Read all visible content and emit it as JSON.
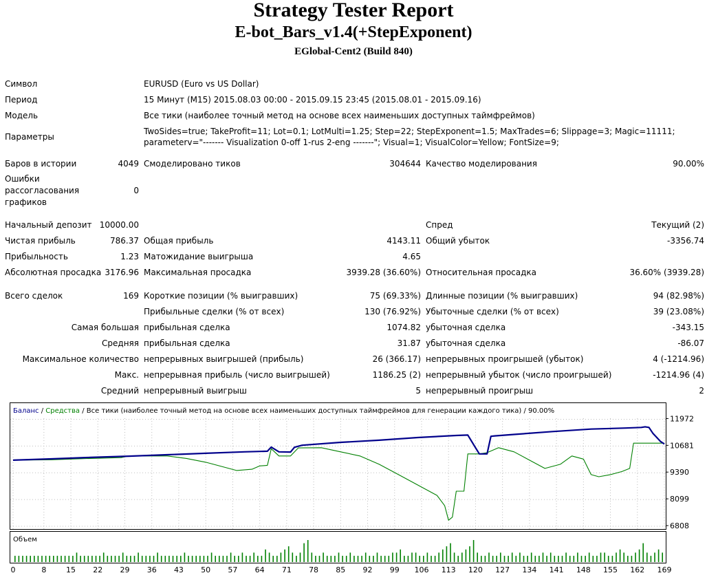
{
  "report": {
    "title": "Strategy Tester Report",
    "expert": "E-bot_Bars_v1.4(+StepExponent)",
    "server": "EGlobal-Cent2 (Build 840)"
  },
  "info": {
    "symbol_label": "Символ",
    "symbol_value": "EURUSD (Euro vs US Dollar)",
    "period_label": "Период",
    "period_value": "15 Минут (M15) 2015.08.03 00:00 - 2015.09.15 23:45 (2015.08.01 - 2015.09.16)",
    "model_label": "Модель",
    "model_value": "Все тики (наиболее точный метод на основе всех наименьших доступных таймфреймов)",
    "params_label": "Параметры",
    "params_line1": "TwoSides=true; TakeProfit=11; Lot=0.1; LotMulti=1.25; Step=22; StepExponent=1.5; MaxTrades=6; Slippage=3; Magic=11111;",
    "params_line2": "parameterv=\"------- Visualization 0-off 1-rus 2-eng -------\"; Visual=1; VisualColor=Yellow; FontSize=9;"
  },
  "stats": {
    "bars_label": "Баров в истории",
    "bars_value": "4049",
    "ticks_label": "Смоделировано тиков",
    "ticks_value": "304644",
    "quality_label": "Качество моделирования",
    "quality_value": "90.00%",
    "errors_label_1": "Ошибки",
    "errors_label_2": "рассогласования",
    "errors_label_3": "графиков",
    "errors_value": "0",
    "deposit_label": "Начальный депозит",
    "deposit_value": "10000.00",
    "spread_label": "Спред",
    "spread_value": "Текущий (2)",
    "net_label": "Чистая прибыль",
    "net_value": "786.37",
    "gross_profit_label": "Общая прибыль",
    "gross_profit_value": "4143.11",
    "gross_loss_label": "Общий убыток",
    "gross_loss_value": "-3356.74",
    "pf_label": "Прибыльность",
    "pf_value": "1.23",
    "payoff_label": "Матожидание выигрыша",
    "payoff_value": "4.65",
    "abs_dd_label": "Абсолютная просадка",
    "abs_dd_value": "3176.96",
    "max_dd_label": "Максимальная просадка",
    "max_dd_value": "3939.28 (36.60%)",
    "rel_dd_label": "Относительная просадка",
    "rel_dd_value": "36.60% (3939.28)",
    "total_label": "Всего сделок",
    "total_value": "169",
    "short_label": "Короткие позиции (% выигравших)",
    "short_value": "75 (69.33%)",
    "long_label": "Длинные позиции (% выигравших)",
    "long_value": "94 (82.98%)",
    "win_trades_label": "Прибыльные сделки (% от всех)",
    "win_trades_value": "130 (76.92%)",
    "loss_trades_label": "Убыточные сделки (% от всех)",
    "loss_trades_value": "39 (23.08%)",
    "largest_label": "Самая большая",
    "largest_win_label": "прибыльная сделка",
    "largest_win_value": "1074.82",
    "largest_loss_label": "убыточная сделка",
    "largest_loss_value": "-343.15",
    "average_label": "Средняя",
    "avg_win_label": "прибыльная сделка",
    "avg_win_value": "31.87",
    "avg_loss_label": "убыточная сделка",
    "avg_loss_value": "-86.07",
    "maxcount_label": "Максимальное количество",
    "max_cons_wins_label": "непрерывных выигрышей (прибыль)",
    "max_cons_wins_value": "26 (366.17)",
    "max_cons_losses_label": "непрерывных проигрышей (убыток)",
    "max_cons_losses_value": "4 (-1214.96)",
    "maxval_label": "Макс.",
    "max_cons_profit_label": "непрерывная прибыль (число выигрышей)",
    "max_cons_profit_value": "1186.25 (2)",
    "max_cons_loss_label": "непрерывный убыток (число проигрышей)",
    "max_cons_loss_value": "-1214.96 (4)",
    "avg_label2": "Средний",
    "avg_cons_wins_label": "непрерывный выигрыш",
    "avg_cons_wins_value": "5",
    "avg_cons_losses_label": "непрерывный проигрыш",
    "avg_cons_losses_value": "2"
  },
  "chart_data": {
    "type": "line",
    "legend_balance": "Баланс",
    "legend_sep": " / ",
    "legend_equity": "Средства",
    "legend_rest": " / Все тики (наиболее точный метод на основе всех наименьших доступных таймфреймов для генерации каждого тика) / 90.00%",
    "volume_label": "Объем",
    "y_ticks": [
      "11972",
      "10681",
      "9390",
      "8099",
      "6808"
    ],
    "x_ticks": [
      "0",
      "8",
      "15",
      "22",
      "29",
      "36",
      "43",
      "50",
      "57",
      "64",
      "71",
      "78",
      "85",
      "92",
      "99",
      "106",
      "113",
      "120",
      "127",
      "134",
      "141",
      "148",
      "155",
      "162",
      "169"
    ],
    "xlim": [
      0,
      169
    ],
    "ylim": [
      6808,
      12618
    ],
    "colors": {
      "balance": "#00008b",
      "equity": "#008000",
      "volume": "#008000"
    },
    "series": [
      {
        "name": "Баланс",
        "color": "#00008b",
        "points": [
          [
            0,
            10000
          ],
          [
            10,
            10060
          ],
          [
            20,
            10130
          ],
          [
            30,
            10190
          ],
          [
            40,
            10260
          ],
          [
            50,
            10330
          ],
          [
            60,
            10400
          ],
          [
            66,
            10430
          ],
          [
            67,
            10630
          ],
          [
            69,
            10400
          ],
          [
            72,
            10390
          ],
          [
            73,
            10620
          ],
          [
            75,
            10720
          ],
          [
            85,
            10860
          ],
          [
            95,
            10960
          ],
          [
            105,
            11090
          ],
          [
            115,
            11190
          ],
          [
            118,
            11210
          ],
          [
            120,
            10600
          ],
          [
            121,
            10300
          ],
          [
            123,
            10300
          ],
          [
            124,
            11150
          ],
          [
            125,
            11170
          ],
          [
            130,
            11240
          ],
          [
            140,
            11380
          ],
          [
            150,
            11500
          ],
          [
            159,
            11550
          ],
          [
            163,
            11580
          ],
          [
            164,
            11610
          ],
          [
            165,
            11580
          ],
          [
            166,
            11300
          ],
          [
            168,
            10900
          ],
          [
            169,
            10780
          ]
        ]
      },
      {
        "name": "Средства",
        "color": "#008000",
        "points": [
          [
            0,
            10000
          ],
          [
            10,
            10020
          ],
          [
            20,
            10080
          ],
          [
            28,
            10120
          ],
          [
            30,
            10200
          ],
          [
            40,
            10200
          ],
          [
            45,
            10080
          ],
          [
            50,
            9900
          ],
          [
            55,
            9650
          ],
          [
            58,
            9500
          ],
          [
            62,
            9560
          ],
          [
            64,
            9720
          ],
          [
            66,
            9750
          ],
          [
            67,
            10550
          ],
          [
            69,
            10200
          ],
          [
            72,
            10200
          ],
          [
            74,
            10590
          ],
          [
            80,
            10600
          ],
          [
            85,
            10400
          ],
          [
            90,
            10200
          ],
          [
            95,
            9800
          ],
          [
            100,
            9300
          ],
          [
            105,
            8800
          ],
          [
            110,
            8300
          ],
          [
            112,
            7800
          ],
          [
            113,
            7100
          ],
          [
            114,
            7250
          ],
          [
            115,
            8500
          ],
          [
            117,
            8500
          ],
          [
            118,
            10300
          ],
          [
            121,
            10300
          ],
          [
            123,
            10360
          ],
          [
            126,
            10600
          ],
          [
            130,
            10400
          ],
          [
            135,
            9900
          ],
          [
            138,
            9600
          ],
          [
            142,
            9800
          ],
          [
            145,
            10200
          ],
          [
            148,
            10050
          ],
          [
            150,
            9300
          ],
          [
            152,
            9200
          ],
          [
            155,
            9300
          ],
          [
            158,
            9450
          ],
          [
            160,
            9600
          ],
          [
            161,
            10820
          ],
          [
            169,
            10820
          ]
        ]
      }
    ],
    "volume": [
      2,
      2,
      2,
      2,
      2,
      2,
      2,
      2,
      2,
      2,
      2,
      2,
      2,
      2,
      2,
      2,
      3,
      2,
      2,
      2,
      2,
      2,
      2,
      3,
      2,
      2,
      2,
      2,
      3,
      2,
      2,
      2,
      3,
      2,
      2,
      2,
      2,
      3,
      2,
      2,
      2,
      2,
      2,
      2,
      3,
      2,
      2,
      2,
      2,
      2,
      2,
      3,
      2,
      2,
      2,
      2,
      3,
      2,
      2,
      3,
      2,
      2,
      3,
      2,
      2,
      4,
      3,
      2,
      2,
      3,
      4,
      5,
      3,
      2,
      3,
      6,
      7,
      3,
      2,
      2,
      3,
      2,
      2,
      2,
      3,
      2,
      2,
      3,
      2,
      2,
      2,
      3,
      2,
      2,
      3,
      2,
      2,
      2,
      3,
      3,
      4,
      2,
      2,
      3,
      3,
      2,
      2,
      3,
      2,
      2,
      3,
      4,
      5,
      6,
      3,
      2,
      3,
      4,
      5,
      7,
      3,
      2,
      2,
      3,
      2,
      2,
      3,
      2,
      2,
      3,
      2,
      3,
      2,
      2,
      3,
      2,
      2,
      3,
      2,
      3,
      2,
      2,
      2,
      3,
      2,
      2,
      3,
      2,
      2,
      3,
      2,
      2,
      3,
      3,
      2,
      2,
      3,
      4,
      3,
      2,
      2,
      3,
      4,
      6,
      3,
      2,
      3,
      4,
      3
    ]
  }
}
